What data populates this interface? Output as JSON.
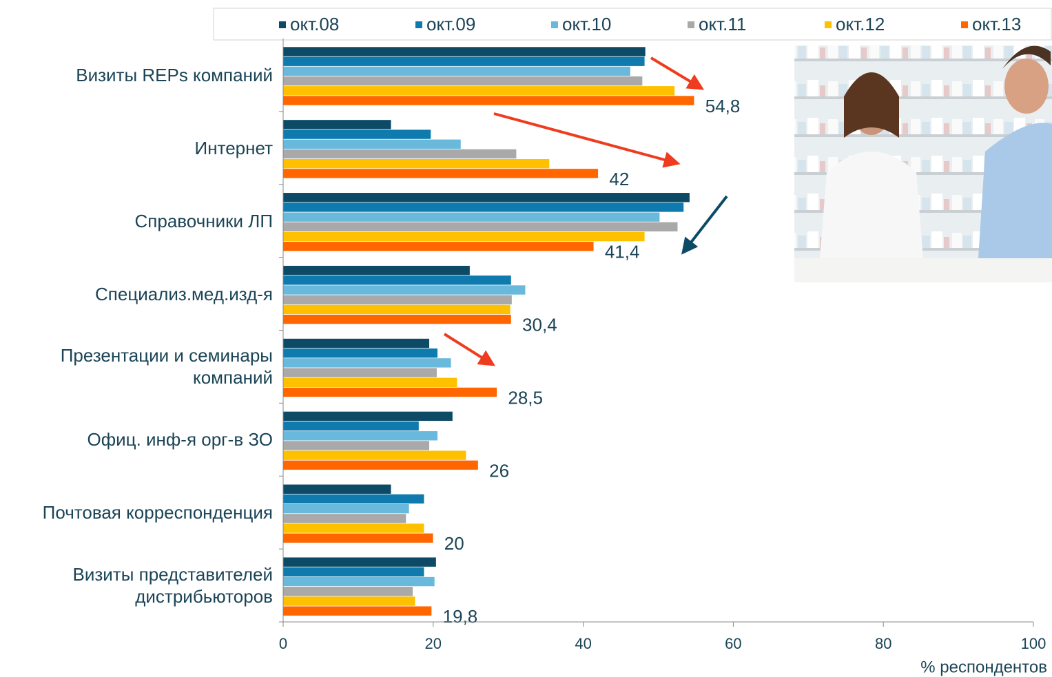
{
  "chart_data": {
    "type": "barh",
    "categories": [
      "Визиты REPs компаний",
      "Интернет",
      "Справочники ЛП",
      "Специализ.мед.изд-я",
      "Презентации и семинары\nкомпаний",
      "Офиц. инф-я орг-в ЗО",
      "Почтовая корреспонденция",
      "Визиты представителей\nдистрибьюторов"
    ],
    "series": [
      {
        "name": "окт.08",
        "color": "#0d4a66",
        "values": [
          48.3,
          14.4,
          54.2,
          24.9,
          19.5,
          22.6,
          14.4,
          20.4
        ]
      },
      {
        "name": "окт.09",
        "color": "#0e7aad",
        "values": [
          48.2,
          19.7,
          53.4,
          30.4,
          20.6,
          18.1,
          18.8,
          18.8
        ]
      },
      {
        "name": "окт.10",
        "color": "#69b9dc",
        "values": [
          46.3,
          23.7,
          50.2,
          32.3,
          22.4,
          20.6,
          16.8,
          20.2
        ]
      },
      {
        "name": "окт.11",
        "color": "#a9a9a9",
        "values": [
          47.9,
          31.1,
          52.6,
          30.5,
          20.5,
          19.5,
          16.4,
          17.3
        ]
      },
      {
        "name": "окт.12",
        "color": "#ffc000",
        "values": [
          52.2,
          35.5,
          48.2,
          30.3,
          23.2,
          24.4,
          18.8,
          17.6
        ]
      },
      {
        "name": "окт.13",
        "color": "#ff6600",
        "values": [
          54.8,
          42,
          41.4,
          30.4,
          28.5,
          26,
          20,
          19.8
        ],
        "value_labels": [
          "54,8",
          "42",
          "41,4",
          "30,4",
          "28,5",
          "26",
          "20",
          "19,8"
        ]
      }
    ],
    "xlim": [
      0,
      100
    ],
    "xticks": [
      0,
      20,
      40,
      60,
      80,
      100
    ],
    "x_label": "% респондентов",
    "legend": "top"
  }
}
